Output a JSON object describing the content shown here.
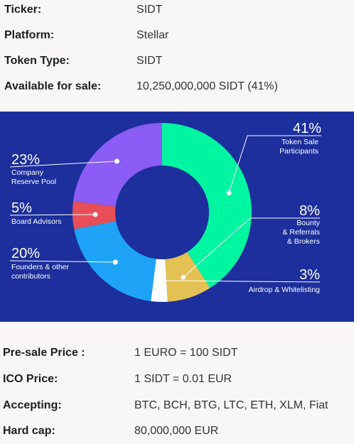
{
  "token_info": [
    {
      "label": "Ticker:",
      "value": "SIDT"
    },
    {
      "label": "Platform:",
      "value": "Stellar"
    },
    {
      "label": "Token Type:",
      "value": "SIDT"
    },
    {
      "label": "Available for sale:",
      "value": "10,250,000,000 SIDT (41%)"
    }
  ],
  "chart_data": {
    "type": "pie",
    "style": "donut",
    "background": "#1c2f9c",
    "slices": [
      {
        "pct_label": "41%",
        "value": 41,
        "lines": [
          "Token Sale",
          "Participants"
        ],
        "color": "#00f5a0"
      },
      {
        "pct_label": "8%",
        "value": 8,
        "lines": [
          "Bounty",
          "& Referrals",
          "& Brokers"
        ],
        "color": "#e3c153"
      },
      {
        "pct_label": "3%",
        "value": 3,
        "lines": [
          "Airdrop & Whitelisting"
        ],
        "color": "#ffffff"
      },
      {
        "pct_label": "20%",
        "value": 20,
        "lines": [
          "Founders & other",
          "contributors"
        ],
        "color": "#1ea3f7"
      },
      {
        "pct_label": "5%",
        "value": 5,
        "lines": [
          "Board Advisors"
        ],
        "color": "#e84e57"
      },
      {
        "pct_label": "23%",
        "value": 23,
        "lines": [
          "Company",
          "Reserve Pool"
        ],
        "color": "#8b5cf6"
      }
    ]
  },
  "sale_info": [
    {
      "label": "Pre-sale Price :",
      "value": "1 EURO = 100 SIDT"
    },
    {
      "label": "ICO Price:",
      "value": "1 SIDT = 0.01 EUR"
    },
    {
      "label": "Accepting:",
      "value": "BTC, BCH, BTG, LTC, ETH, XLM, Fiat"
    },
    {
      "label": "Hard cap:",
      "value": "80,000,000 EUR"
    }
  ]
}
